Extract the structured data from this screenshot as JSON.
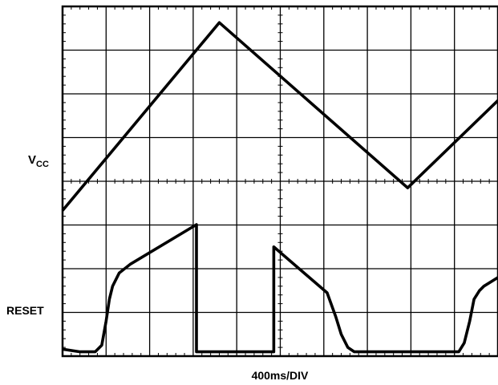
{
  "chart_data": {
    "type": "line",
    "title": "",
    "xlabel": "400ms/DIV",
    "ylabel": "",
    "x_unit": "ms",
    "xlim": [
      0,
      4000
    ],
    "divisions": {
      "x": 10,
      "y": 8
    },
    "grid": true,
    "series": [
      {
        "name": "VCC",
        "label_main": "V",
        "label_sub": "CC",
        "points": [
          [
            0,
            3.33
          ],
          [
            1440,
            7.63
          ],
          [
            3170,
            3.85
          ],
          [
            4000,
            5.85
          ]
        ]
      },
      {
        "name": "RESET",
        "label_main": "RESET",
        "label_sub": "",
        "points": [
          [
            0,
            0.16
          ],
          [
            160,
            0.1
          ],
          [
            300,
            0.1
          ],
          [
            360,
            0.25
          ],
          [
            400,
            0.8
          ],
          [
            430,
            1.3
          ],
          [
            460,
            1.6
          ],
          [
            520,
            1.9
          ],
          [
            620,
            2.1
          ],
          [
            1230,
            3.01
          ],
          [
            1230,
            0.1
          ],
          [
            1940,
            0.1
          ],
          [
            1940,
            2.5
          ],
          [
            2430,
            1.45
          ],
          [
            2510,
            0.9
          ],
          [
            2560,
            0.5
          ],
          [
            2620,
            0.2
          ],
          [
            2680,
            0.1
          ],
          [
            3640,
            0.1
          ],
          [
            3690,
            0.3
          ],
          [
            3740,
            0.8
          ],
          [
            3780,
            1.3
          ],
          [
            3830,
            1.5
          ],
          [
            3870,
            1.6
          ],
          [
            4000,
            1.8
          ]
        ]
      }
    ]
  }
}
